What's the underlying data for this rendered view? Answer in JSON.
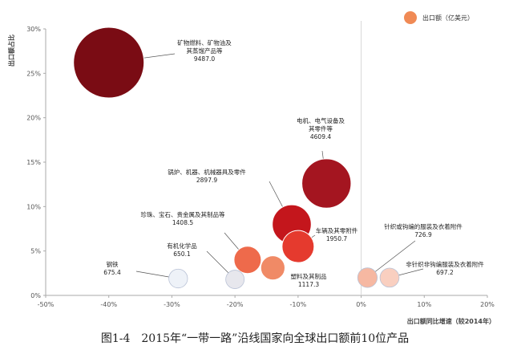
{
  "caption": "图1-4　2015年“一带一路”沿线国家向全球出口额前10位产品",
  "chart_data": {
    "type": "scatter",
    "xlabel": "出口额同比增速（较2014年）",
    "ylabel": "出口额占比",
    "xlim": [
      -50,
      20
    ],
    "ylim": [
      0,
      30
    ],
    "x_ticks": [
      "-50%",
      "-40%",
      "-30%",
      "-20%",
      "-10%",
      "0%",
      "10%",
      "20%"
    ],
    "y_ticks": [
      "0%",
      "5%",
      "10%",
      "15%",
      "20%",
      "25%",
      "30%"
    ],
    "legend": {
      "label": "出口额（亿美元）",
      "color": "#F08A55",
      "position": "top-right"
    },
    "grid": false,
    "reference_line_x": 0,
    "points": [
      {
        "name_lines": [
          "矿物燃料、矿物油及",
          "其蒸馏产品等"
        ],
        "value_label": "9487.0",
        "x": -40,
        "y": 26.2,
        "size": 9487.0,
        "color": "#7A0C14"
      },
      {
        "name_lines": [
          "电机、电气设备及",
          "其零件等"
        ],
        "value_label": "4609.4",
        "x": -5.5,
        "y": 12.6,
        "size": 4609.4,
        "color": "#A41520"
      },
      {
        "name_lines": [
          "锅炉、机器、机械器具及零件"
        ],
        "value_label": "2897.9",
        "x": -11,
        "y": 8.0,
        "size": 2897.9,
        "color": "#C4161C"
      },
      {
        "name_lines": [
          "车辆及其零附件"
        ],
        "value_label": "1950.7",
        "x": -10,
        "y": 5.5,
        "size": 1950.7,
        "color": "#E53A2E"
      },
      {
        "name_lines": [
          "珍珠、宝石、贵金属及其制品等"
        ],
        "value_label": "1408.5",
        "x": -18,
        "y": 4.0,
        "size": 1408.5,
        "color": "#EE6A4B"
      },
      {
        "name_lines": [
          "塑料及其制品"
        ],
        "value_label": "1117.3",
        "x": -14,
        "y": 3.1,
        "size": 1117.3,
        "color": "#F08A66"
      },
      {
        "name_lines": [
          "针织或钩编的服装及衣着附件"
        ],
        "value_label": "726.9",
        "x": 1,
        "y": 2.0,
        "size": 726.9,
        "color": "#F6B8A2"
      },
      {
        "name_lines": [
          "非针织非钩编服装及衣着附件"
        ],
        "value_label": "697.2",
        "x": 4.5,
        "y": 2.0,
        "size": 697.2,
        "color": "#F9CFC0"
      },
      {
        "name_lines": [
          "钢铁"
        ],
        "value_label": "675.4",
        "x": -29,
        "y": 1.9,
        "size": 675.4,
        "color": "#EEF2F8"
      },
      {
        "name_lines": [
          "有机化学品"
        ],
        "value_label": "650.1",
        "x": -20,
        "y": 1.8,
        "size": 650.1,
        "color": "#E7E7ED"
      }
    ]
  }
}
